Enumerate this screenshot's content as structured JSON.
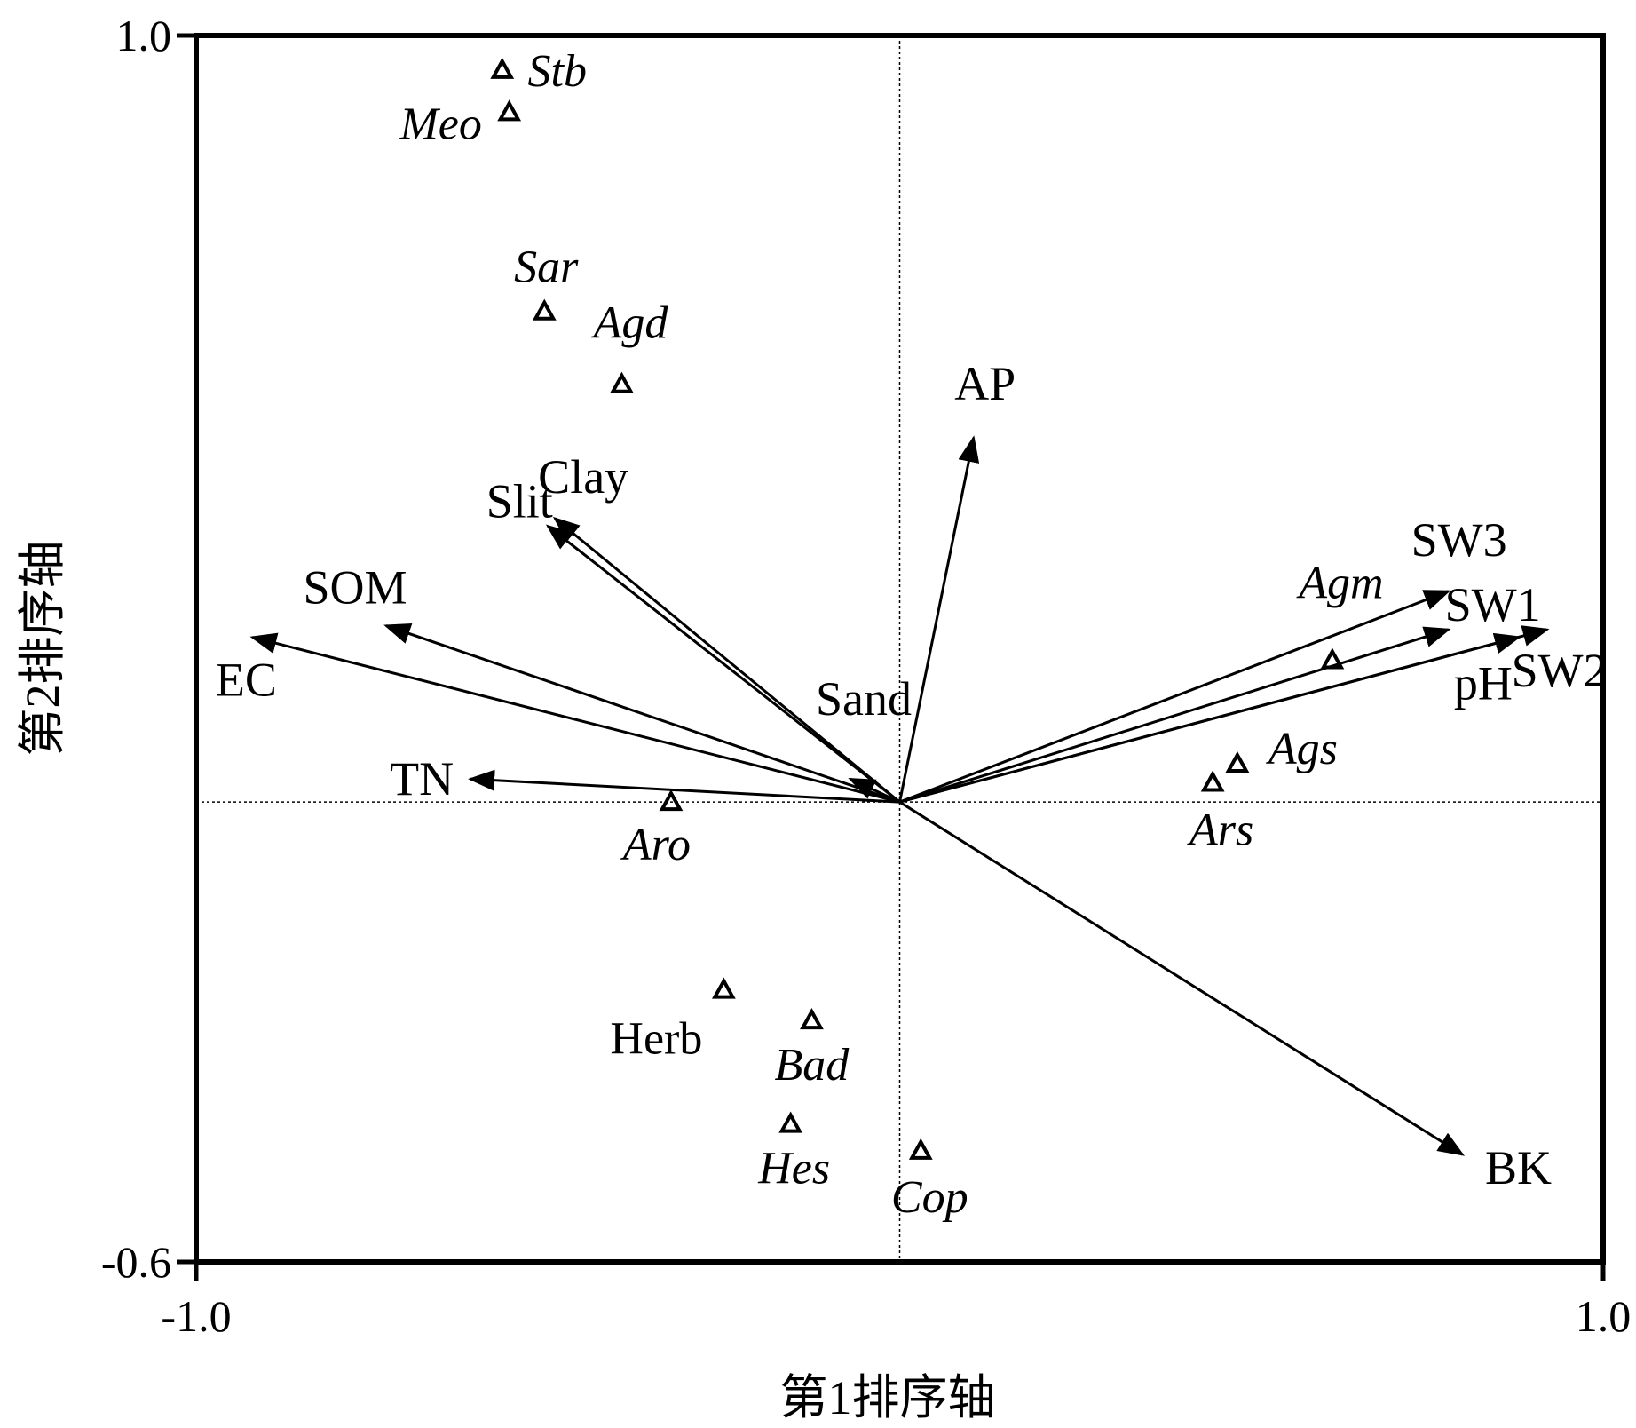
{
  "chart_data": {
    "type": "scatter",
    "subtype": "CCA biplot",
    "xlabel": "第1排序轴",
    "ylabel": "第2排序轴",
    "xlim": [
      -1.0,
      1.0
    ],
    "ylim": [
      -0.6,
      1.0
    ],
    "x_tick_labels": [
      "-1.0",
      "1.0"
    ],
    "y_tick_labels": [
      "-0.6",
      "1.0"
    ],
    "origin_lines": true,
    "environment_vectors": [
      {
        "name": "AP",
        "x": 0.105,
        "y": 0.475
      },
      {
        "name": "Clay",
        "x": -0.49,
        "y": 0.37
      },
      {
        "name": "Slit",
        "x": -0.5,
        "y": 0.36
      },
      {
        "name": "SOM",
        "x": -0.73,
        "y": 0.23
      },
      {
        "name": "EC",
        "x": -0.92,
        "y": 0.215
      },
      {
        "name": "TN",
        "x": -0.61,
        "y": 0.03
      },
      {
        "name": "Sand",
        "x": -0.07,
        "y": 0.03
      },
      {
        "name": "SW3",
        "x": 0.78,
        "y": 0.275
      },
      {
        "name": "SW1",
        "x": 0.78,
        "y": 0.225
      },
      {
        "name": "pH",
        "x": 0.88,
        "y": 0.215
      },
      {
        "name": "SW2",
        "x": 0.92,
        "y": 0.225
      },
      {
        "name": "BK",
        "x": 0.8,
        "y": -0.46
      }
    ],
    "species": [
      {
        "name": "Stb",
        "x": -0.565,
        "y": 0.955
      },
      {
        "name": "Meo",
        "x": -0.555,
        "y": 0.9
      },
      {
        "name": "Sar",
        "x": -0.505,
        "y": 0.64
      },
      {
        "name": "Agd",
        "x": -0.395,
        "y": 0.545
      },
      {
        "name": "Agm",
        "x": 0.615,
        "y": 0.185
      },
      {
        "name": "Ags",
        "x": 0.48,
        "y": 0.05
      },
      {
        "name": "Ars",
        "x": 0.445,
        "y": 0.025
      },
      {
        "name": "Aro",
        "x": -0.325,
        "y": 0.0
      },
      {
        "name": "Herb",
        "x": -0.25,
        "y": -0.245
      },
      {
        "name": "Bad",
        "x": -0.125,
        "y": -0.285
      },
      {
        "name": "Hes",
        "x": -0.155,
        "y": -0.42
      },
      {
        "name": "Cop",
        "x": 0.03,
        "y": -0.455
      }
    ]
  }
}
